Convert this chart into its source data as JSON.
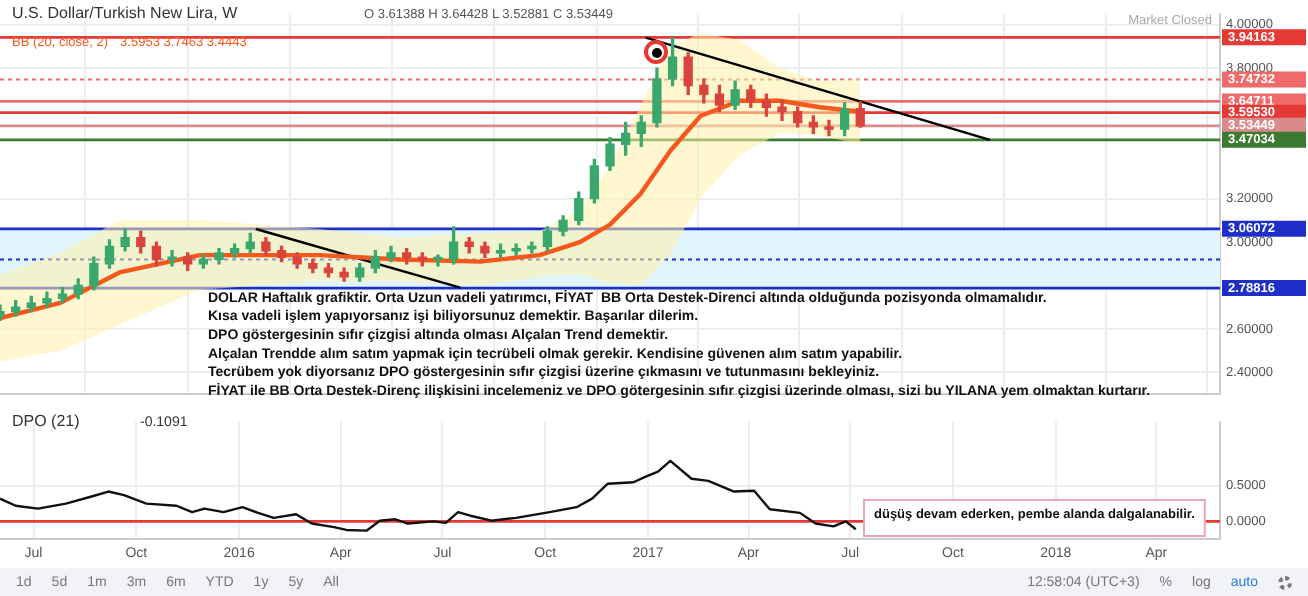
{
  "chart_data": [
    {
      "type": "candlestick",
      "title": "U.S. Dollar/Turkish New Lira, W",
      "subtitle": "O 3.61388 H 3.64428 L 3.52881 C 3.53449",
      "x": [
        "2015-06-01",
        "2015-06-15",
        "2015-06-29",
        "2015-07-13",
        "2015-07-27",
        "2015-08-10",
        "2015-08-24",
        "2015-09-07",
        "2015-09-21",
        "2015-10-05",
        "2015-10-19",
        "2015-11-02",
        "2015-11-16",
        "2015-11-30",
        "2015-12-14",
        "2015-12-28",
        "2016-01-11",
        "2016-01-25",
        "2016-02-08",
        "2016-02-22",
        "2016-03-07",
        "2016-03-21",
        "2016-04-04",
        "2016-04-18",
        "2016-05-02",
        "2016-05-16",
        "2016-05-30",
        "2016-06-13",
        "2016-06-27",
        "2016-07-11",
        "2016-07-25",
        "2016-08-08",
        "2016-08-22",
        "2016-09-05",
        "2016-09-19",
        "2016-10-03",
        "2016-10-17",
        "2016-10-31",
        "2016-11-14",
        "2016-11-28",
        "2016-12-12",
        "2016-12-26",
        "2017-01-09",
        "2017-01-23",
        "2017-02-06",
        "2017-02-20",
        "2017-03-06",
        "2017-03-20",
        "2017-04-03",
        "2017-04-17",
        "2017-05-01",
        "2017-05-15",
        "2017-05-29",
        "2017-06-12",
        "2017-06-26",
        "2017-07-10"
      ],
      "ohlc": [
        [
          2.66,
          2.71,
          2.64,
          2.68
        ],
        [
          2.68,
          2.73,
          2.66,
          2.7
        ],
        [
          2.7,
          2.75,
          2.68,
          2.72
        ],
        [
          2.72,
          2.77,
          2.7,
          2.74
        ],
        [
          2.74,
          2.79,
          2.72,
          2.76
        ],
        [
          2.76,
          2.83,
          2.74,
          2.8
        ],
        [
          2.8,
          2.93,
          2.78,
          2.9
        ],
        [
          2.9,
          3.01,
          2.88,
          2.98
        ],
        [
          2.98,
          3.06,
          2.96,
          3.02
        ],
        [
          3.02,
          3.05,
          2.95,
          2.98
        ],
        [
          2.98,
          3.0,
          2.89,
          2.92
        ],
        [
          2.92,
          2.96,
          2.89,
          2.93
        ],
        [
          2.93,
          2.95,
          2.87,
          2.9
        ],
        [
          2.9,
          2.94,
          2.88,
          2.92
        ],
        [
          2.92,
          2.97,
          2.9,
          2.95
        ],
        [
          2.95,
          2.99,
          2.93,
          2.97
        ],
        [
          2.97,
          3.04,
          2.95,
          3.0
        ],
        [
          3.0,
          3.02,
          2.94,
          2.96
        ],
        [
          2.96,
          2.98,
          2.91,
          2.93
        ],
        [
          2.93,
          2.95,
          2.88,
          2.9
        ],
        [
          2.9,
          2.92,
          2.86,
          2.88
        ],
        [
          2.88,
          2.9,
          2.84,
          2.86
        ],
        [
          2.86,
          2.88,
          2.82,
          2.84
        ],
        [
          2.84,
          2.9,
          2.82,
          2.88
        ],
        [
          2.88,
          2.96,
          2.86,
          2.93
        ],
        [
          2.93,
          2.98,
          2.91,
          2.95
        ],
        [
          2.95,
          2.97,
          2.9,
          2.93
        ],
        [
          2.93,
          2.95,
          2.89,
          2.92
        ],
        [
          2.92,
          2.94,
          2.89,
          2.92
        ],
        [
          2.92,
          3.07,
          2.9,
          3.0
        ],
        [
          3.0,
          3.02,
          2.95,
          2.98
        ],
        [
          2.98,
          3.0,
          2.93,
          2.95
        ],
        [
          2.95,
          2.99,
          2.93,
          2.96
        ],
        [
          2.96,
          2.99,
          2.94,
          2.97
        ],
        [
          2.97,
          3.0,
          2.95,
          2.98
        ],
        [
          2.98,
          3.07,
          2.96,
          3.05
        ],
        [
          3.05,
          3.12,
          3.03,
          3.1
        ],
        [
          3.1,
          3.23,
          3.08,
          3.2
        ],
        [
          3.2,
          3.38,
          3.18,
          3.35
        ],
        [
          3.35,
          3.48,
          3.33,
          3.45
        ],
        [
          3.45,
          3.55,
          3.4,
          3.5
        ],
        [
          3.5,
          3.58,
          3.44,
          3.55
        ],
        [
          3.55,
          3.8,
          3.53,
          3.75
        ],
        [
          3.75,
          3.94,
          3.72,
          3.85
        ],
        [
          3.85,
          3.87,
          3.68,
          3.72
        ],
        [
          3.72,
          3.75,
          3.64,
          3.68
        ],
        [
          3.68,
          3.72,
          3.6,
          3.63
        ],
        [
          3.63,
          3.74,
          3.61,
          3.7
        ],
        [
          3.7,
          3.72,
          3.62,
          3.65
        ],
        [
          3.65,
          3.68,
          3.58,
          3.62
        ],
        [
          3.62,
          3.65,
          3.56,
          3.6
        ],
        [
          3.6,
          3.62,
          3.53,
          3.55
        ],
        [
          3.55,
          3.58,
          3.5,
          3.53
        ],
        [
          3.53,
          3.56,
          3.49,
          3.52
        ],
        [
          3.52,
          3.64,
          3.49,
          3.61
        ],
        [
          3.61388,
          3.64428,
          3.52881,
          3.53449
        ]
      ],
      "series": [
        {
          "type": "line",
          "name": "BB (20, close, 2)",
          "color": "#f4581c",
          "x": [
            "2015-06-01",
            "2015-07-25",
            "2015-09-16",
            "2015-11-27",
            "2016-01-20",
            "2016-03-13",
            "2016-05-24",
            "2016-08-04",
            "2016-09-26",
            "2016-11-01",
            "2016-11-28",
            "2016-12-25",
            "2017-01-21",
            "2017-02-17",
            "2017-03-24",
            "2017-04-29",
            "2017-06-04",
            "2017-07-10"
          ],
          "values": [
            2.65,
            2.72,
            2.86,
            2.94,
            2.94,
            2.94,
            2.92,
            2.91,
            2.94,
            3.0,
            3.08,
            3.22,
            3.42,
            3.58,
            3.65,
            3.65,
            3.62,
            3.6
          ],
          "lower": [
            2.45,
            2.5,
            2.62,
            2.78,
            2.8,
            2.82,
            2.82,
            2.8,
            2.84,
            2.85,
            2.81,
            2.8,
            2.94,
            3.2,
            3.4,
            3.5,
            3.49,
            3.45
          ],
          "upper": [
            2.85,
            2.95,
            3.1,
            3.1,
            3.08,
            3.06,
            3.02,
            3.04,
            3.05,
            3.15,
            3.35,
            3.62,
            3.9,
            3.96,
            3.93,
            3.8,
            3.74,
            3.75
          ]
        },
        {
          "type": "line",
          "color": "#000000",
          "x": [
            "2016-01-16",
            "2016-07-17"
          ],
          "values": [
            3.06,
            2.79
          ]
        },
        {
          "type": "line",
          "color": "#000000",
          "x": [
            "2016-12-30",
            "2017-11-03"
          ],
          "values": [
            3.94,
            3.47
          ]
        }
      ],
      "ref_lines": [
        {
          "axis": "y",
          "value": 3.94163,
          "label": "3.94163",
          "color": "#e53935"
        },
        {
          "axis": "y",
          "value": 3.74732,
          "label": "3.74732",
          "color": "#ef6a6a",
          "line_style": "dotted"
        },
        {
          "axis": "y",
          "value": 3.64711,
          "label": "3.64711",
          "color": "#ef6a6a"
        },
        {
          "axis": "y",
          "value": 3.5953,
          "label": "3.59530",
          "color": "#e53935"
        },
        {
          "axis": "y",
          "value": 3.53449,
          "label": "3.53449",
          "color": "#d98a8a"
        },
        {
          "axis": "y",
          "value": 3.47034,
          "label": "3.47034",
          "color": "#3c7a32"
        },
        {
          "axis": "y",
          "value": 3.06072,
          "label": "3.06072",
          "color": "#1e2fc8"
        },
        {
          "axis": "y",
          "value": 2.78816,
          "label": "2.78816",
          "color": "#1e2fc8"
        },
        {
          "axis": "y",
          "value": 2.92,
          "color": "#1e2fc8",
          "line_style": "dotted"
        }
      ],
      "bands": [
        {
          "axis": "y",
          "from": 2.78816,
          "to": 3.06072,
          "color": "#e0f4fb"
        }
      ],
      "annotations": [
        "Market Closed",
        "3.5953 3.7463 3.4443",
        "DOLAR Haftalık grafiktir. Orta Uzun vadeli yatırımcı, FİYAT  BB Orta Destek-Direnci altında olduğunda pozisyonda olmamalıdır.",
        "Kısa vadeli işlem yapıyorsanız işi biliyorsunuz demektir. Başarılar dilerim.",
        "DPO göstergesinin sıfır çizgisi altında olması Alçalan Trend demektir.",
        "Alçalan Trendde alım satım yapmak için tecrübeli olmak gerekir. Kendisine güvenen alım satım yapabilir.",
        "Tecrübem yok diyorsanız DPO göstergesinin sıfır çizgisi üzerine çıkmasını ve tutunmasını bekleyiniz.",
        "FİYAT ile BB Orta Destek-Direnç ilişkisini incelemeniz ve DPO götergesinin sıfır çizgisi üzerinde olması, sizi bu YILANA yem olmaktan kurtarır."
      ],
      "xlim": [
        "2015-06-01",
        "2018-05-28"
      ],
      "xticks": [
        {
          "value": "2015-07",
          "label": null
        },
        {
          "value": "2015-10",
          "label": null
        },
        {
          "value": "2016",
          "label": null
        },
        {
          "value": "2016-04",
          "label": null
        },
        {
          "value": "2016-07",
          "label": null
        },
        {
          "value": "2016-10",
          "label": null
        },
        {
          "value": "2017",
          "label": null
        },
        {
          "value": "2017-04",
          "label": null
        },
        {
          "value": "2017-07",
          "label": null
        },
        {
          "value": "2017-10",
          "label": null
        },
        {
          "value": "2018",
          "label": null
        },
        {
          "value": "2018-04",
          "label": null
        }
      ],
      "ylim": [
        2.3,
        4.05
      ],
      "yticks": [
        {
          "value": 2.4,
          "label": "2.40000"
        },
        {
          "value": 2.6,
          "label": "2.60000"
        },
        {
          "value": 3.0,
          "label": "3.00000"
        },
        {
          "value": 3.2,
          "label": "3.20000"
        },
        {
          "value": 3.8,
          "label": "3.80000"
        },
        {
          "value": 4.0,
          "label": "4.00000"
        }
      ],
      "grid": true,
      "tick_labels": "y"
    },
    {
      "type": "line",
      "title": "DPO (21)",
      "subtitle": "-0.1091",
      "series": [
        {
          "color": "#111111",
          "x": [
            "2015-06-01",
            "2015-06-15",
            "2015-07-05",
            "2015-07-30",
            "2015-08-22",
            "2015-09-06",
            "2015-09-20",
            "2015-10-10",
            "2015-11-06",
            "2015-11-20",
            "2015-12-01",
            "2015-12-18",
            "2016-01-04",
            "2016-01-18",
            "2016-02-01",
            "2016-02-21",
            "2016-03-06",
            "2016-03-26",
            "2016-04-06",
            "2016-04-24",
            "2016-05-06",
            "2016-05-20",
            "2016-05-31",
            "2016-06-23",
            "2016-07-04",
            "2016-07-15",
            "2016-07-26",
            "2016-08-14",
            "2016-09-05",
            "2016-10-05",
            "2016-10-29",
            "2016-11-12",
            "2016-11-26",
            "2016-12-19",
            "2016-12-30",
            "2017-01-10",
            "2017-01-21",
            "2017-02-09",
            "2017-02-24",
            "2017-03-19",
            "2017-04-06",
            "2017-04-20",
            "2017-05-17",
            "2017-05-31",
            "2017-06-16",
            "2017-06-27",
            "2017-07-06"
          ],
          "values": [
            0.32,
            0.22,
            0.18,
            0.25,
            0.35,
            0.42,
            0.37,
            0.25,
            0.22,
            0.13,
            0.18,
            0.13,
            0.2,
            0.12,
            0.05,
            0.1,
            -0.03,
            -0.08,
            -0.12,
            -0.13,
            0.01,
            0.03,
            -0.03,
            0,
            -0.02,
            0.13,
            0.08,
            0.01,
            0.05,
            0.13,
            0.2,
            0.32,
            0.53,
            0.55,
            0.63,
            0.7,
            0.85,
            0.6,
            0.57,
            0.42,
            0.43,
            0.17,
            0.12,
            -0.03,
            -0.07,
            0,
            -0.11
          ]
        }
      ],
      "ref_lines": [
        {
          "axis": "y",
          "value": 0,
          "color": "#e53935"
        }
      ],
      "annotations": [
        "düşüş devam ederken, pembe alanda dalgalanabilir.",
        "1d",
        "5d",
        "1m",
        "3m",
        "6m",
        "YTD",
        "1y",
        "5y",
        "All",
        "12:58:04 (UTC+3)",
        "%",
        "log",
        "auto"
      ],
      "xlim": [
        "2015-06-01",
        "2018-05-28"
      ],
      "xticks": [
        {
          "value": "2015-07",
          "label": "Jul"
        },
        {
          "value": "2015-10",
          "label": "Oct"
        },
        {
          "value": "2016",
          "label": "2016"
        },
        {
          "value": "2016-04",
          "label": "Apr"
        },
        {
          "value": "2016-07",
          "label": "Jul"
        },
        {
          "value": "2016-10",
          "label": "Oct"
        },
        {
          "value": "2017",
          "label": "2017"
        },
        {
          "value": "2017-04",
          "label": "Apr"
        },
        {
          "value": "2017-07",
          "label": "Jul"
        },
        {
          "value": "2017-10",
          "label": "Oct"
        },
        {
          "value": "2018",
          "label": "2018"
        },
        {
          "value": "2018-04",
          "label": "Apr"
        }
      ],
      "ylim": [
        -0.25,
        1.4
      ],
      "yticks": [
        {
          "value": 0,
          "label": "0.0000"
        },
        {
          "value": 0.5,
          "label": "0.5000"
        }
      ],
      "grid": true
    }
  ]
}
